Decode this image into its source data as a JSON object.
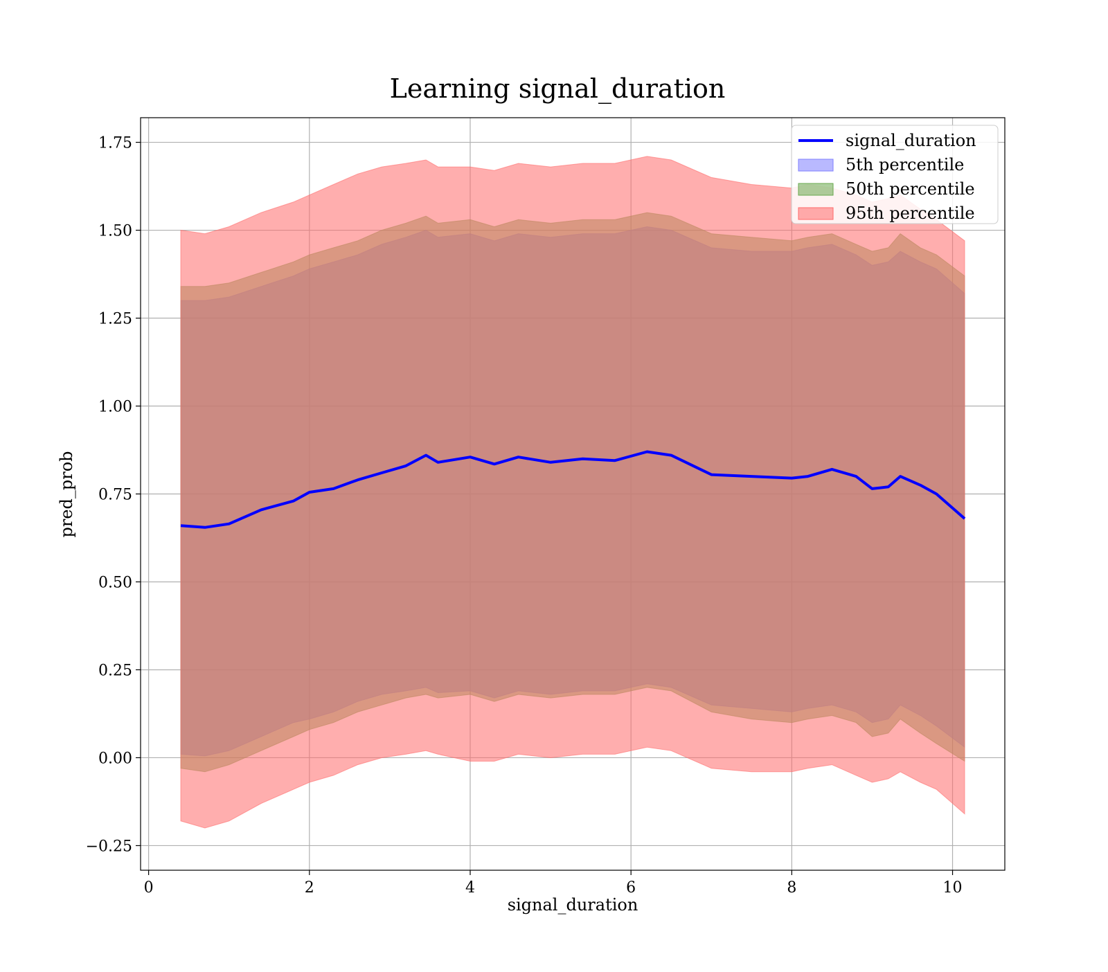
{
  "chart_data": {
    "type": "area",
    "title": "Learning signal_duration",
    "xlabel": "signal_duration",
    "ylabel": "pred_prob",
    "xlim": [
      -0.1,
      10.65
    ],
    "ylim": [
      -0.32,
      1.82
    ],
    "xticks": [
      0,
      2,
      4,
      6,
      8,
      10
    ],
    "xtick_labels": [
      "0",
      "2",
      "4",
      "6",
      "8",
      "10"
    ],
    "yticks": [
      -0.25,
      0,
      0.25,
      0.5,
      0.75,
      1.0,
      1.25,
      1.5,
      1.75
    ],
    "ytick_labels": [
      "−0.25",
      "0.00",
      "0.25",
      "0.50",
      "0.75",
      "1.00",
      "1.25",
      "1.50",
      "1.75"
    ],
    "grid": true,
    "legend_position": "upper-right",
    "colors": {
      "line": "#0000ff",
      "band_5": "#8080ff",
      "band_50": "#6aa84f",
      "band_95": "#ff6b6b"
    },
    "x": [
      0.4,
      0.7,
      1.0,
      1.4,
      1.8,
      2.0,
      2.3,
      2.6,
      2.9,
      3.2,
      3.45,
      3.6,
      4.0,
      4.3,
      4.6,
      5.0,
      5.4,
      5.8,
      6.2,
      6.5,
      7.0,
      7.5,
      8.0,
      8.2,
      8.5,
      8.8,
      9.0,
      9.2,
      9.35,
      9.6,
      9.8,
      10.15
    ],
    "series": [
      {
        "name": "signal_duration",
        "role": "line",
        "values": [
          0.66,
          0.655,
          0.665,
          0.705,
          0.73,
          0.755,
          0.765,
          0.79,
          0.81,
          0.83,
          0.86,
          0.84,
          0.855,
          0.835,
          0.855,
          0.84,
          0.85,
          0.845,
          0.87,
          0.86,
          0.805,
          0.8,
          0.795,
          0.8,
          0.82,
          0.8,
          0.765,
          0.77,
          0.8,
          0.775,
          0.75,
          0.68
        ]
      },
      {
        "name": "5th percentile",
        "role": "band",
        "lower": [
          0.01,
          0.005,
          0.02,
          0.06,
          0.1,
          0.11,
          0.13,
          0.16,
          0.18,
          0.19,
          0.2,
          0.185,
          0.19,
          0.17,
          0.19,
          0.18,
          0.19,
          0.19,
          0.21,
          0.2,
          0.15,
          0.14,
          0.13,
          0.14,
          0.15,
          0.13,
          0.1,
          0.11,
          0.15,
          0.12,
          0.09,
          0.03
        ],
        "upper": [
          1.3,
          1.3,
          1.31,
          1.34,
          1.37,
          1.39,
          1.41,
          1.43,
          1.46,
          1.48,
          1.5,
          1.48,
          1.49,
          1.47,
          1.49,
          1.48,
          1.49,
          1.49,
          1.51,
          1.5,
          1.45,
          1.44,
          1.44,
          1.45,
          1.46,
          1.43,
          1.4,
          1.41,
          1.44,
          1.41,
          1.39,
          1.32
        ]
      },
      {
        "name": "50th percentile",
        "role": "band",
        "lower": [
          -0.03,
          -0.04,
          -0.02,
          0.02,
          0.06,
          0.08,
          0.1,
          0.13,
          0.15,
          0.17,
          0.18,
          0.17,
          0.18,
          0.16,
          0.18,
          0.17,
          0.18,
          0.18,
          0.2,
          0.19,
          0.13,
          0.11,
          0.1,
          0.11,
          0.12,
          0.1,
          0.06,
          0.07,
          0.11,
          0.07,
          0.04,
          -0.01
        ],
        "upper": [
          1.34,
          1.34,
          1.35,
          1.38,
          1.41,
          1.43,
          1.45,
          1.47,
          1.5,
          1.52,
          1.54,
          1.52,
          1.53,
          1.51,
          1.53,
          1.52,
          1.53,
          1.53,
          1.55,
          1.54,
          1.49,
          1.48,
          1.47,
          1.48,
          1.49,
          1.46,
          1.44,
          1.45,
          1.49,
          1.45,
          1.43,
          1.37
        ]
      },
      {
        "name": "95th percentile",
        "role": "band",
        "lower": [
          -0.18,
          -0.2,
          -0.18,
          -0.13,
          -0.09,
          -0.07,
          -0.05,
          -0.02,
          0.0,
          0.01,
          0.02,
          0.01,
          -0.01,
          -0.01,
          0.01,
          0.0,
          0.01,
          0.01,
          0.03,
          0.02,
          -0.03,
          -0.04,
          -0.04,
          -0.03,
          -0.02,
          -0.05,
          -0.07,
          -0.06,
          -0.04,
          -0.07,
          -0.09,
          -0.16
        ],
        "upper": [
          1.5,
          1.49,
          1.51,
          1.55,
          1.58,
          1.6,
          1.63,
          1.66,
          1.68,
          1.69,
          1.7,
          1.68,
          1.68,
          1.67,
          1.69,
          1.68,
          1.69,
          1.69,
          1.71,
          1.7,
          1.65,
          1.63,
          1.62,
          1.63,
          1.62,
          1.6,
          1.58,
          1.59,
          1.6,
          1.56,
          1.53,
          1.47
        ]
      }
    ]
  }
}
